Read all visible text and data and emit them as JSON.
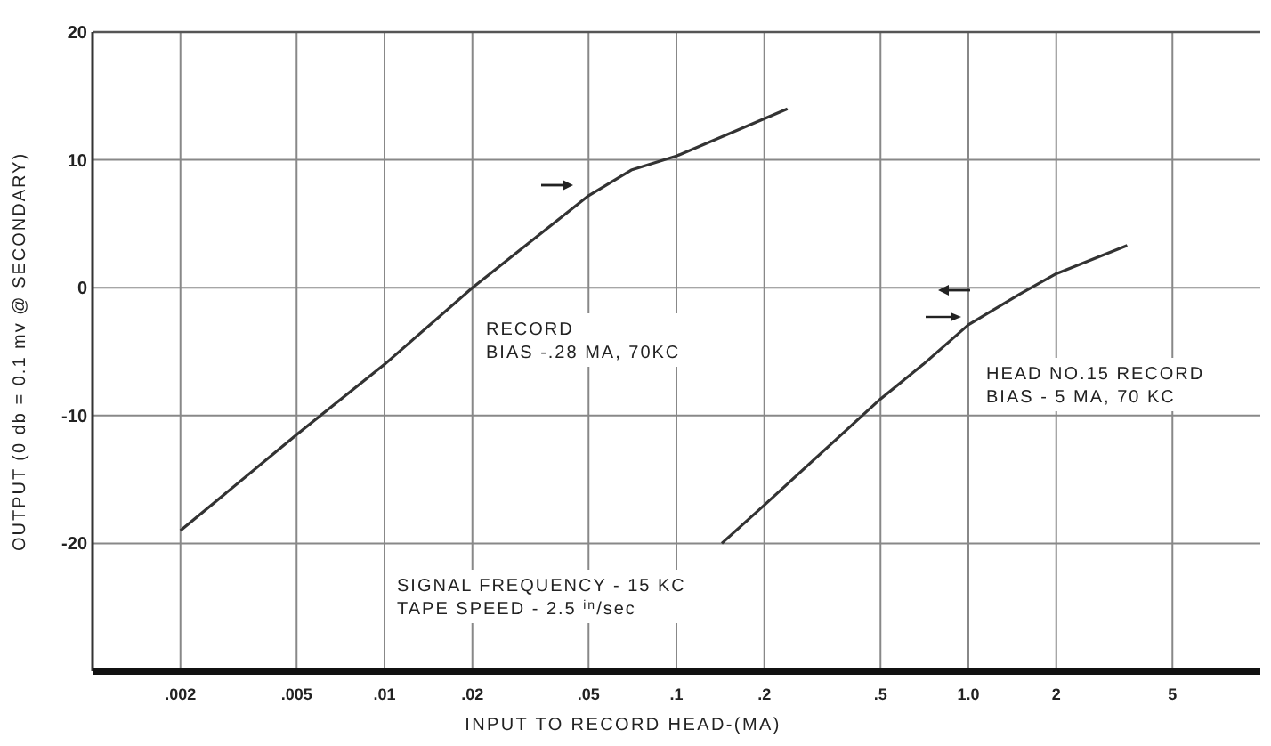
{
  "chart_data": {
    "type": "line",
    "xlabel": "INPUT TO RECORD HEAD-(MA)",
    "ylabel": "OUTPUT (0 db = 0.1 mv @ SECONDARY)",
    "log": "x",
    "grid": true,
    "marker": "none",
    "line_style": "solid",
    "xlim": [
      0.001,
      10
    ],
    "ylim": [
      -30,
      20
    ],
    "xticks": [
      {
        "value": 0.002,
        "label": ".002"
      },
      {
        "value": 0.005,
        "label": ".005"
      },
      {
        "value": 0.01,
        "label": ".01"
      },
      {
        "value": 0.02,
        "label": ".02"
      },
      {
        "value": 0.05,
        "label": ".05"
      },
      {
        "value": 0.1,
        "label": ".1"
      },
      {
        "value": 0.2,
        "label": ".2"
      },
      {
        "value": 0.5,
        "label": ".5"
      },
      {
        "value": 1,
        "label": "1.0"
      },
      {
        "value": 2,
        "label": "2"
      },
      {
        "value": 5,
        "label": "5"
      }
    ],
    "yticks": [
      20,
      10,
      0,
      -10,
      -20
    ],
    "series": [
      {
        "color": "#333333",
        "x": [
          0.002,
          0.005,
          0.01,
          0.02,
          0.05,
          0.07,
          0.1,
          0.24
        ],
        "values": [
          -19,
          -11.5,
          -6,
          0,
          7.2,
          9.2,
          10.3,
          14
        ]
      },
      {
        "color": "#333333",
        "x": [
          0.143,
          0.2,
          0.5,
          0.7,
          1,
          1.5,
          2,
          3.5
        ],
        "values": [
          -20,
          -17,
          -8.7,
          -6,
          -2.9,
          -0.5,
          1.1,
          3.3
        ]
      }
    ],
    "annotations": [
      "RECORD\nBIAS -.28 MA, 70KC",
      "HEAD NO.15 RECORD\nBIAS - 5 MA, 70 KC",
      "SIGNAL FREQUENCY - 15 KC\nTAPE SPEED - 2.5 $^{in}$/sec"
    ]
  }
}
